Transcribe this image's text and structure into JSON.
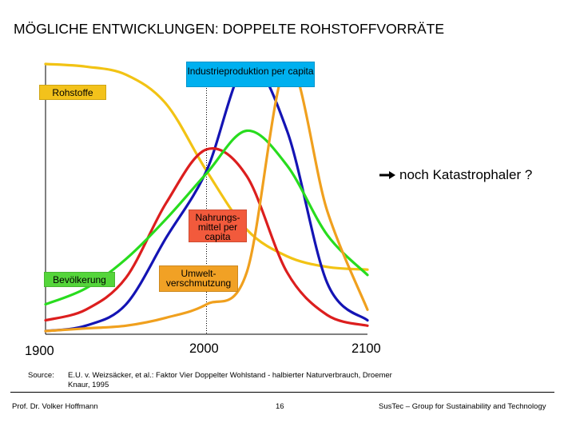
{
  "title": "MÖGLICHE ENTWICKLUNGEN: DOPPELTE ROHSTOFFVORRÄTE",
  "chart_data": {
    "type": "line",
    "x": [
      1900,
      1925,
      1950,
      1975,
      2000,
      2025,
      2050,
      2075,
      2100
    ],
    "xlim": [
      1900,
      2100
    ],
    "ylim": [
      0,
      100
    ],
    "reference_year": 2000,
    "tick_labels": [
      "1900",
      "2000",
      "2100"
    ],
    "series": [
      {
        "name": "Rohstoffe",
        "color": "#f2c314",
        "values": [
          100,
          99,
          96,
          85,
          60,
          38,
          28,
          24,
          23
        ]
      },
      {
        "name": "Industrieproduktion per capita",
        "color": "#1414b4",
        "values": [
          0,
          2,
          10,
          35,
          60,
          100,
          75,
          18,
          4
        ]
      },
      {
        "name": "Nahrungsmittel per capita",
        "color": "#dc1e1e",
        "values": [
          4,
          8,
          20,
          48,
          68,
          58,
          22,
          6,
          2
        ]
      },
      {
        "name": "Bevölkerung",
        "color": "#28dc1e",
        "values": [
          10,
          16,
          27,
          42,
          59,
          75,
          62,
          36,
          21
        ]
      },
      {
        "name": "Umweltverschmutzung",
        "color": "#f0a01e",
        "values": [
          0,
          1,
          2,
          5,
          10,
          22,
          100,
          45,
          8
        ]
      }
    ],
    "labels": {
      "rohstoffe": "Rohstoffe",
      "industrie": "Industrieproduktion per capita",
      "nahrung": "Nahrungs- mittel per capita",
      "bevoelkerung": "Bevölkerung",
      "umwelt": "Umwelt- verschmutzung"
    },
    "annotation": "noch Katastrophaler ?"
  },
  "source": {
    "label": "Source:",
    "text": "E.U. v. Weizsäcker, et al.: Faktor Vier Doppelter Wohlstand - halbierter Naturverbrauch, Droemer Knaur, 1995"
  },
  "footer": {
    "author": "Prof. Dr. Volker Hoffmann",
    "page": "16",
    "org": "SusTec – Group for Sustainability and Technology"
  }
}
